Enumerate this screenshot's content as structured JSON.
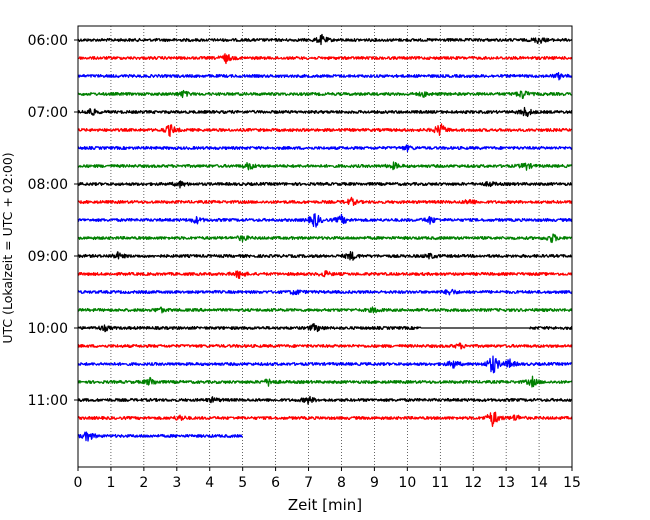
{
  "chart_data": {
    "type": "line",
    "title": "",
    "xlabel": "Zeit  [min]",
    "ylabel": "UTC (Lokalzeit = UTC + 02:00)",
    "xlim": [
      0,
      15
    ],
    "x_ticks": [
      "0",
      "1",
      "2",
      "3",
      "4",
      "5",
      "6",
      "7",
      "8",
      "9",
      "10",
      "11",
      "12",
      "13",
      "14",
      "15"
    ],
    "y_ticks": [
      "06:00",
      "07:00",
      "08:00",
      "09:00",
      "10:00",
      "11:00"
    ],
    "row_interval_minutes": 15,
    "grid": {
      "vertical": true,
      "style": "dotted"
    },
    "trace_colors": [
      "#000000",
      "#ff0000",
      "#0000ff",
      "#008000"
    ],
    "rows": [
      {
        "start": "06:00",
        "color": "#000000",
        "end_min": 15,
        "events": [
          [
            7.4,
            1.0
          ],
          [
            14.0,
            0.8
          ]
        ]
      },
      {
        "start": "06:15",
        "color": "#ff0000",
        "end_min": 15,
        "events": [
          [
            4.5,
            1.0
          ]
        ]
      },
      {
        "start": "06:30",
        "color": "#0000ff",
        "end_min": 15,
        "events": [
          [
            14.6,
            0.6
          ]
        ]
      },
      {
        "start": "06:45",
        "color": "#008000",
        "end_min": 15,
        "events": [
          [
            3.2,
            0.7
          ],
          [
            13.5,
            1.0
          ],
          [
            10.5,
            0.5
          ]
        ]
      },
      {
        "start": "07:00",
        "color": "#000000",
        "end_min": 15,
        "events": [
          [
            0.4,
            0.9
          ],
          [
            13.6,
            1.2
          ]
        ]
      },
      {
        "start": "07:15",
        "color": "#ff0000",
        "end_min": 15,
        "events": [
          [
            2.8,
            1.3
          ],
          [
            11.0,
            1.5
          ]
        ]
      },
      {
        "start": "07:30",
        "color": "#0000ff",
        "end_min": 15,
        "events": [
          [
            10.0,
            0.5
          ]
        ]
      },
      {
        "start": "07:45",
        "color": "#008000",
        "end_min": 15,
        "events": [
          [
            5.2,
            0.8
          ],
          [
            9.6,
            0.7
          ],
          [
            13.6,
            0.8
          ]
        ]
      },
      {
        "start": "08:00",
        "color": "#000000",
        "end_min": 15,
        "events": [
          [
            3.1,
            0.6
          ],
          [
            12.5,
            0.5
          ]
        ]
      },
      {
        "start": "08:15",
        "color": "#ff0000",
        "end_min": 15,
        "events": [
          [
            8.3,
            0.8
          ],
          [
            11.9,
            0.6
          ]
        ]
      },
      {
        "start": "08:30",
        "color": "#0000ff",
        "end_min": 15,
        "events": [
          [
            3.6,
            0.7
          ],
          [
            7.2,
            1.8
          ],
          [
            8.0,
            1.0
          ],
          [
            10.7,
            0.8
          ]
        ]
      },
      {
        "start": "08:45",
        "color": "#008000",
        "end_min": 15,
        "events": [
          [
            5.0,
            0.6
          ],
          [
            14.4,
            1.0
          ]
        ]
      },
      {
        "start": "09:00",
        "color": "#000000",
        "end_min": 15,
        "events": [
          [
            1.2,
            0.7
          ],
          [
            8.3,
            1.0
          ],
          [
            10.7,
            0.5
          ]
        ]
      },
      {
        "start": "09:15",
        "color": "#ff0000",
        "end_min": 15,
        "events": [
          [
            4.9,
            0.9
          ],
          [
            7.5,
            0.6
          ]
        ]
      },
      {
        "start": "09:30",
        "color": "#0000ff",
        "end_min": 15,
        "events": [
          [
            6.6,
            0.6
          ],
          [
            11.3,
            0.7
          ]
        ]
      },
      {
        "start": "09:45",
        "color": "#008000",
        "end_min": 15,
        "events": [
          [
            2.5,
            0.5
          ],
          [
            9.0,
            0.6
          ]
        ]
      },
      {
        "start": "10:00",
        "color": "#000000",
        "end_min": 15,
        "gap": [
          10.4,
          13.7
        ],
        "events": [
          [
            7.2,
            1.0
          ],
          [
            0.8,
            0.6
          ]
        ]
      },
      {
        "start": "10:15",
        "color": "#ff0000",
        "end_min": 15,
        "events": [
          [
            11.6,
            0.5
          ]
        ]
      },
      {
        "start": "10:30",
        "color": "#0000ff",
        "end_min": 15,
        "events": [
          [
            11.4,
            0.9
          ],
          [
            12.6,
            2.4
          ],
          [
            13.1,
            1.0
          ]
        ]
      },
      {
        "start": "10:45",
        "color": "#008000",
        "end_min": 15,
        "events": [
          [
            2.2,
            0.9
          ],
          [
            5.8,
            0.8
          ],
          [
            13.8,
            1.0
          ]
        ]
      },
      {
        "start": "11:00",
        "color": "#000000",
        "end_min": 15,
        "events": [
          [
            7.0,
            0.8
          ],
          [
            4.1,
            0.5
          ]
        ]
      },
      {
        "start": "11:15",
        "color": "#ff0000",
        "end_min": 15,
        "events": [
          [
            12.6,
            2.0
          ],
          [
            3.1,
            0.6
          ],
          [
            13.3,
            0.7
          ]
        ]
      },
      {
        "start": "11:30",
        "color": "#0000ff",
        "end_min": 5.0,
        "events": [
          [
            0.3,
            1.2
          ]
        ]
      }
    ]
  }
}
